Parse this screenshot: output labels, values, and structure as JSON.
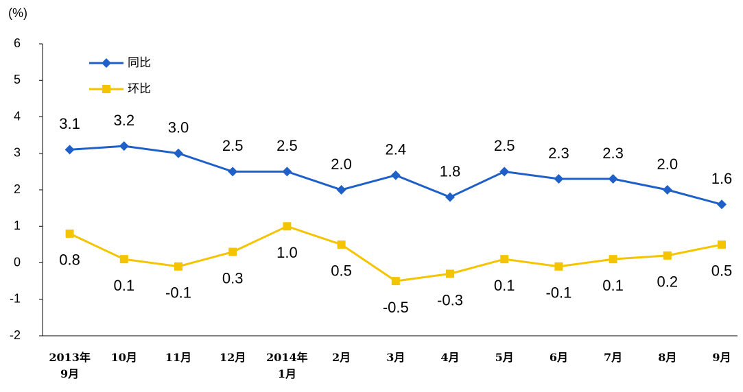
{
  "chart_data": {
    "type": "line",
    "y_unit": "(%)",
    "categories": [
      "2013年\n9月",
      "10月",
      "11月",
      "12月",
      "2014年\n1月",
      "2月",
      "3月",
      "4月",
      "5月",
      "6月",
      "7月",
      "8月",
      "9月"
    ],
    "series": [
      {
        "name": "同比",
        "color": "#1f5fc8",
        "marker": "diamond",
        "values": [
          3.1,
          3.2,
          3.0,
          2.5,
          2.5,
          2.0,
          2.4,
          1.8,
          2.5,
          2.3,
          2.3,
          2.0,
          1.6
        ],
        "value_labels": [
          "3.1",
          "3.2",
          "3.0",
          "2.5",
          "2.5",
          "2.0",
          "2.4",
          "1.8",
          "2.5",
          "2.3",
          "2.3",
          "2.0",
          "1.6"
        ]
      },
      {
        "name": "环比",
        "color": "#f5c400",
        "marker": "square",
        "values": [
          0.8,
          0.1,
          -0.1,
          0.3,
          1.0,
          0.5,
          -0.5,
          -0.3,
          0.1,
          -0.1,
          0.1,
          0.2,
          0.5
        ],
        "value_labels": [
          "0.8",
          "0.1",
          "-0.1",
          "0.3",
          "1.0",
          "0.5",
          "-0.5",
          "-0.3",
          "0.1",
          "-0.1",
          "0.1",
          "0.2",
          "0.5"
        ]
      }
    ],
    "ylim": [
      -2,
      6
    ],
    "yticks": [
      -2,
      -1,
      0,
      1,
      2,
      3,
      4,
      5,
      6
    ],
    "legend": "top-left"
  }
}
